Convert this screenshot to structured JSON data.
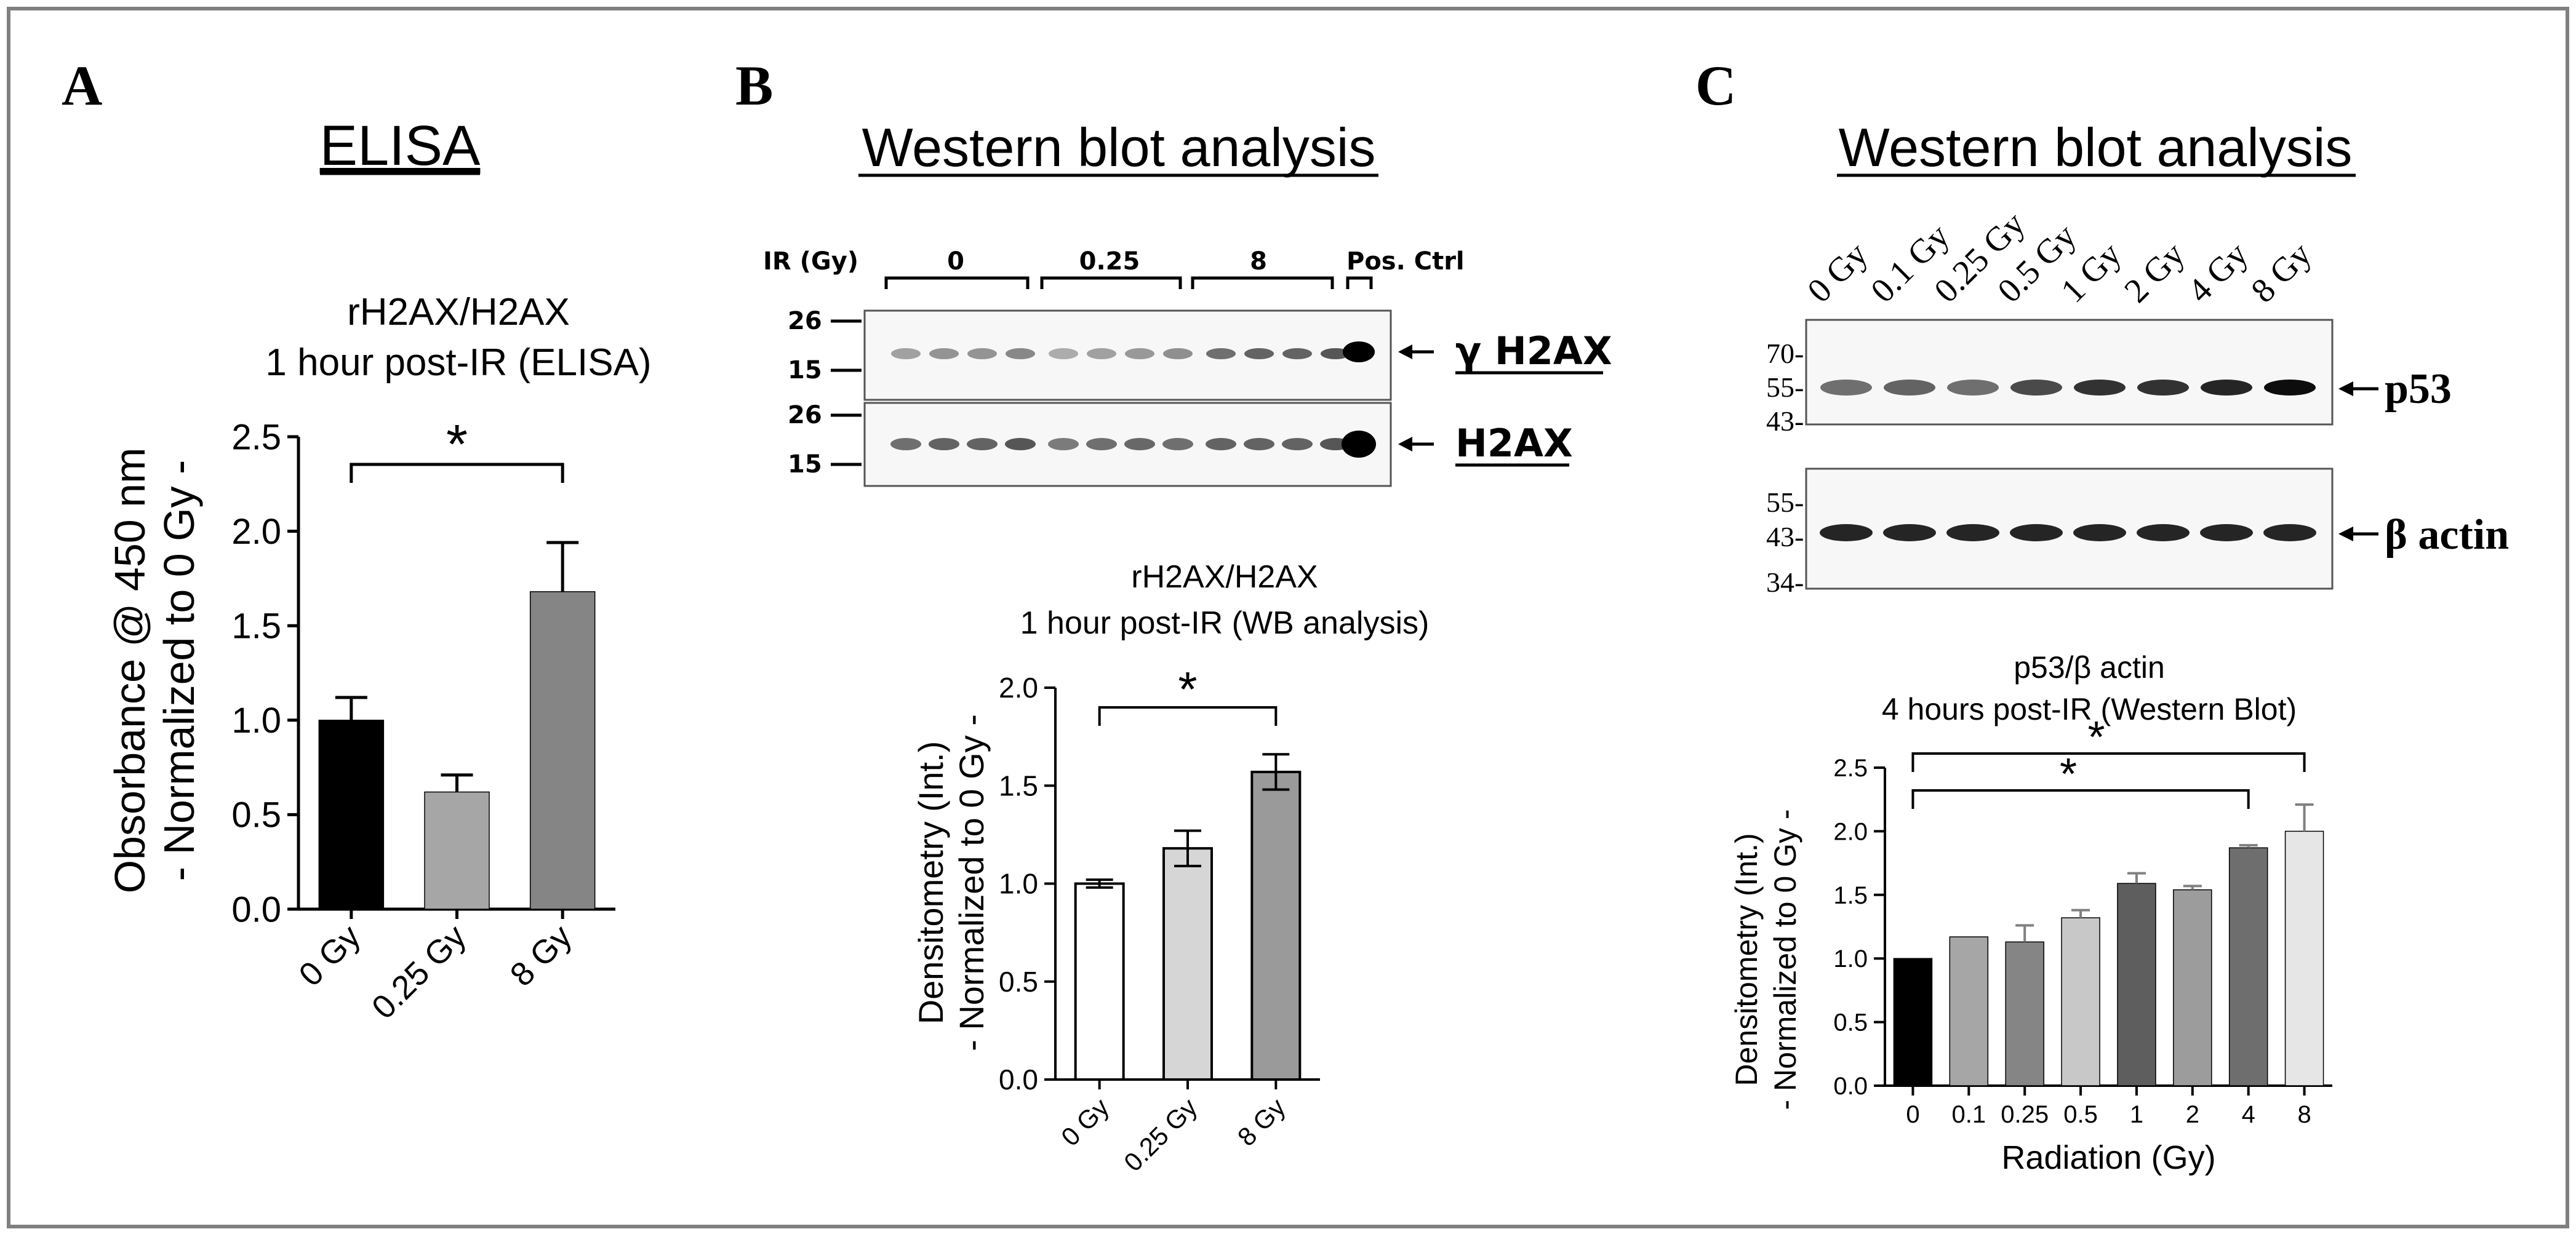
{
  "panels": {
    "A": {
      "letter": "A",
      "heading": "ELISA",
      "chart_title": [
        "rH2AX/H2AX",
        "1 hour post-IR (ELISA)"
      ],
      "ylabel": [
        "Obsorbance @ 450 nm",
        "- Normalized to 0 Gy -"
      ],
      "significance": "*"
    },
    "B": {
      "letter": "B",
      "heading": "Western blot analysis",
      "blot": {
        "ir_label": "IR (Gy)",
        "groups": [
          "0",
          "0.25",
          "8",
          "Pos. Ctrl"
        ],
        "markers_top": [
          "26",
          "15"
        ],
        "markers_bottom": [
          "26",
          "15"
        ],
        "band_labels": [
          "γ H2AX",
          "H2AX"
        ]
      },
      "chart_title": [
        "rH2AX/H2AX",
        "1 hour post-IR (WB analysis)"
      ],
      "ylabel": [
        "Densitometry (Int.)",
        "- Normalized to 0 Gy -"
      ],
      "significance": "*"
    },
    "C": {
      "letter": "C",
      "heading": "Western blot analysis",
      "blot": {
        "lanes": [
          "0 Gy",
          "0.1 Gy",
          "0.25 Gy",
          "0.5 Gy",
          "1 Gy",
          "2 Gy",
          "4 Gy",
          "8 Gy"
        ],
        "markers_top": [
          "70-",
          "55-",
          "43-"
        ],
        "markers_bottom": [
          "55-",
          "43-",
          "34-"
        ],
        "band_labels": [
          "p53",
          "β actin"
        ]
      },
      "chart_title": [
        "p53/β actin",
        "4 hours post-IR (Western Blot)"
      ],
      "ylabel": [
        "Densitometry (Int.)",
        "- Normalized to 0 Gy -"
      ],
      "significance": [
        "*",
        "*"
      ]
    }
  },
  "chart_data": [
    {
      "type": "bar",
      "panel": "A",
      "categories": [
        "0 Gy",
        "0.25 Gy",
        "8 Gy"
      ],
      "values": [
        1.0,
        0.62,
        1.68
      ],
      "errors": [
        0.12,
        0.09,
        0.26
      ],
      "colors": [
        "#000000",
        "#a6a6a6",
        "#858585"
      ],
      "ylim": [
        0,
        2.5
      ],
      "yticks": [
        0.0,
        0.5,
        1.0,
        1.5,
        2.0,
        2.5
      ],
      "ytick_labels": [
        "0.0",
        "0.5",
        "1.0",
        "1.5",
        "2.0",
        "2.5"
      ],
      "brackets": [
        {
          "from": "0 Gy",
          "to": "8 Gy",
          "label": "*"
        }
      ]
    },
    {
      "type": "bar",
      "panel": "B",
      "categories": [
        "0 Gy",
        "0.25 Gy",
        "8 Gy"
      ],
      "values": [
        1.0,
        1.18,
        1.57
      ],
      "errors": [
        0.02,
        0.09,
        0.09
      ],
      "colors": [
        "#ffffff",
        "#d6d6d6",
        "#9a9a9a"
      ],
      "ylim": [
        0,
        2.0
      ],
      "yticks": [
        0.0,
        0.5,
        1.0,
        1.5,
        2.0
      ],
      "ytick_labels": [
        "0.0",
        "0.5",
        "1.0",
        "1.5",
        "2.0"
      ],
      "brackets": [
        {
          "from": "0 Gy",
          "to": "8 Gy",
          "label": "*"
        }
      ]
    },
    {
      "type": "bar",
      "panel": "C",
      "categories": [
        "0",
        "0.1",
        "0.25",
        "0.5",
        "1",
        "2",
        "4",
        "8"
      ],
      "values": [
        1.0,
        1.17,
        1.13,
        1.32,
        1.59,
        1.54,
        1.87,
        2.0
      ],
      "errors": [
        0.0,
        0.0,
        0.13,
        0.06,
        0.08,
        0.03,
        0.02,
        0.21
      ],
      "colors": [
        "#000000",
        "#a6a6a6",
        "#858585",
        "#c8c8c8",
        "#5e5e5e",
        "#9c9c9c",
        "#6e6e6e",
        "#e6e6e6"
      ],
      "ylim": [
        0,
        2.5
      ],
      "yticks": [
        0.0,
        0.5,
        1.0,
        1.5,
        2.0,
        2.5
      ],
      "ytick_labels": [
        "0.0",
        "0.5",
        "1.0",
        "1.5",
        "2.0",
        "2.5"
      ],
      "xlabel": "Radiation (Gy)",
      "brackets": [
        {
          "from": "0",
          "to": "8",
          "label": "*"
        },
        {
          "from": "0",
          "to": "4",
          "label": "*"
        }
      ]
    }
  ]
}
